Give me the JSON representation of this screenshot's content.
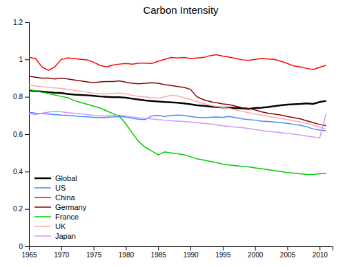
{
  "chart_data": {
    "type": "line",
    "title": "Carbon Intensity",
    "x": [
      1965,
      1966,
      1967,
      1968,
      1969,
      1970,
      1971,
      1972,
      1973,
      1974,
      1975,
      1976,
      1977,
      1978,
      1979,
      1980,
      1981,
      1982,
      1983,
      1984,
      1985,
      1986,
      1987,
      1988,
      1989,
      1990,
      1991,
      1992,
      1993,
      1994,
      1995,
      1996,
      1997,
      1998,
      1999,
      2000,
      2001,
      2002,
      2003,
      2004,
      2005,
      2006,
      2007,
      2008,
      2009,
      2010,
      2011
    ],
    "series": [
      {
        "name": "Global",
        "color": "#000000",
        "values": [
          0.835,
          0.83,
          0.828,
          0.825,
          0.822,
          0.82,
          0.815,
          0.812,
          0.81,
          0.808,
          0.805,
          0.802,
          0.8,
          0.798,
          0.798,
          0.795,
          0.79,
          0.785,
          0.78,
          0.778,
          0.775,
          0.772,
          0.77,
          0.768,
          0.765,
          0.76,
          0.755,
          0.752,
          0.748,
          0.745,
          0.743,
          0.742,
          0.74,
          0.738,
          0.735,
          0.74,
          0.742,
          0.745,
          0.75,
          0.755,
          0.758,
          0.76,
          0.762,
          0.765,
          0.762,
          0.772,
          0.778
        ]
      },
      {
        "name": "US",
        "color": "#4488ff",
        "values": [
          0.718,
          0.712,
          0.71,
          0.708,
          0.705,
          0.702,
          0.7,
          0.698,
          0.695,
          0.693,
          0.69,
          0.688,
          0.69,
          0.692,
          0.695,
          0.692,
          0.685,
          0.68,
          0.678,
          0.698,
          0.7,
          0.695,
          0.7,
          0.702,
          0.7,
          0.695,
          0.69,
          0.688,
          0.69,
          0.692,
          0.69,
          0.695,
          0.688,
          0.682,
          0.678,
          0.675,
          0.67,
          0.668,
          0.665,
          0.662,
          0.658,
          0.652,
          0.648,
          0.64,
          0.628,
          0.622,
          0.618
        ]
      },
      {
        "name": "China",
        "color": "#ff0000",
        "values": [
          1.01,
          1.005,
          0.96,
          0.942,
          0.96,
          1.0,
          1.008,
          1.005,
          1.0,
          0.998,
          0.985,
          0.968,
          0.96,
          0.97,
          0.975,
          0.978,
          0.975,
          0.98,
          0.98,
          0.978,
          0.99,
          1.0,
          1.01,
          1.008,
          1.01,
          1.005,
          1.008,
          1.01,
          1.02,
          1.025,
          1.018,
          1.012,
          1.005,
          0.998,
          0.995,
          1.0,
          1.005,
          1.002,
          1.0,
          0.99,
          0.978,
          0.965,
          0.96,
          0.952,
          0.945,
          0.958,
          0.968
        ]
      },
      {
        "name": "Germany",
        "color": "#880000",
        "values": [
          0.91,
          0.905,
          0.9,
          0.9,
          0.895,
          0.9,
          0.895,
          0.89,
          0.885,
          0.88,
          0.875,
          0.88,
          0.882,
          0.882,
          0.885,
          0.878,
          0.872,
          0.87,
          0.872,
          0.875,
          0.872,
          0.865,
          0.86,
          0.855,
          0.85,
          0.84,
          0.8,
          0.785,
          0.775,
          0.768,
          0.762,
          0.758,
          0.75,
          0.742,
          0.738,
          0.73,
          0.72,
          0.712,
          0.708,
          0.702,
          0.695,
          0.688,
          0.682,
          0.672,
          0.662,
          0.652,
          0.645
        ]
      },
      {
        "name": "France",
        "color": "#00cc00",
        "values": [
          0.838,
          0.832,
          0.825,
          0.818,
          0.81,
          0.802,
          0.795,
          0.78,
          0.77,
          0.76,
          0.75,
          0.74,
          0.725,
          0.71,
          0.695,
          0.655,
          0.605,
          0.56,
          0.53,
          0.51,
          0.49,
          0.505,
          0.5,
          0.495,
          0.49,
          0.48,
          0.468,
          0.462,
          0.455,
          0.448,
          0.44,
          0.435,
          0.432,
          0.428,
          0.425,
          0.42,
          0.415,
          0.41,
          0.405,
          0.4,
          0.395,
          0.392,
          0.388,
          0.385,
          0.385,
          0.388,
          0.39
        ]
      },
      {
        "name": "UK",
        "color": "#ffaaaa",
        "values": [
          0.862,
          0.858,
          0.855,
          0.85,
          0.848,
          0.845,
          0.84,
          0.835,
          0.83,
          0.825,
          0.818,
          0.815,
          0.815,
          0.818,
          0.82,
          0.815,
          0.808,
          0.802,
          0.8,
          0.795,
          0.792,
          0.8,
          0.808,
          0.805,
          0.795,
          0.785,
          0.775,
          0.765,
          0.755,
          0.748,
          0.742,
          0.738,
          0.73,
          0.722,
          0.715,
          0.708,
          0.702,
          0.695,
          0.69,
          0.685,
          0.678,
          0.672,
          0.665,
          0.658,
          0.648,
          0.638,
          0.628
        ]
      },
      {
        "name": "Japan",
        "color": "#cc99ff",
        "values": [
          0.71,
          0.705,
          0.712,
          0.718,
          0.722,
          0.72,
          0.715,
          0.712,
          0.71,
          0.705,
          0.7,
          0.698,
          0.698,
          0.7,
          0.702,
          0.698,
          0.692,
          0.688,
          0.685,
          0.682,
          0.678,
          0.675,
          0.672,
          0.67,
          0.668,
          0.665,
          0.662,
          0.658,
          0.655,
          0.65,
          0.645,
          0.642,
          0.638,
          0.635,
          0.63,
          0.625,
          0.62,
          0.615,
          0.612,
          0.608,
          0.605,
          0.6,
          0.595,
          0.59,
          0.585,
          0.58,
          0.712
        ]
      }
    ],
    "xlim": [
      1965,
      2012
    ],
    "xticks": [
      1965,
      1970,
      1975,
      1980,
      1985,
      1990,
      1995,
      2000,
      2005,
      2010
    ],
    "ylim": [
      0,
      1.2
    ],
    "yticks": [
      0,
      0.2,
      0.4,
      0.6,
      0.8,
      1,
      1.2
    ],
    "grid": false,
    "legend": "lower left"
  }
}
